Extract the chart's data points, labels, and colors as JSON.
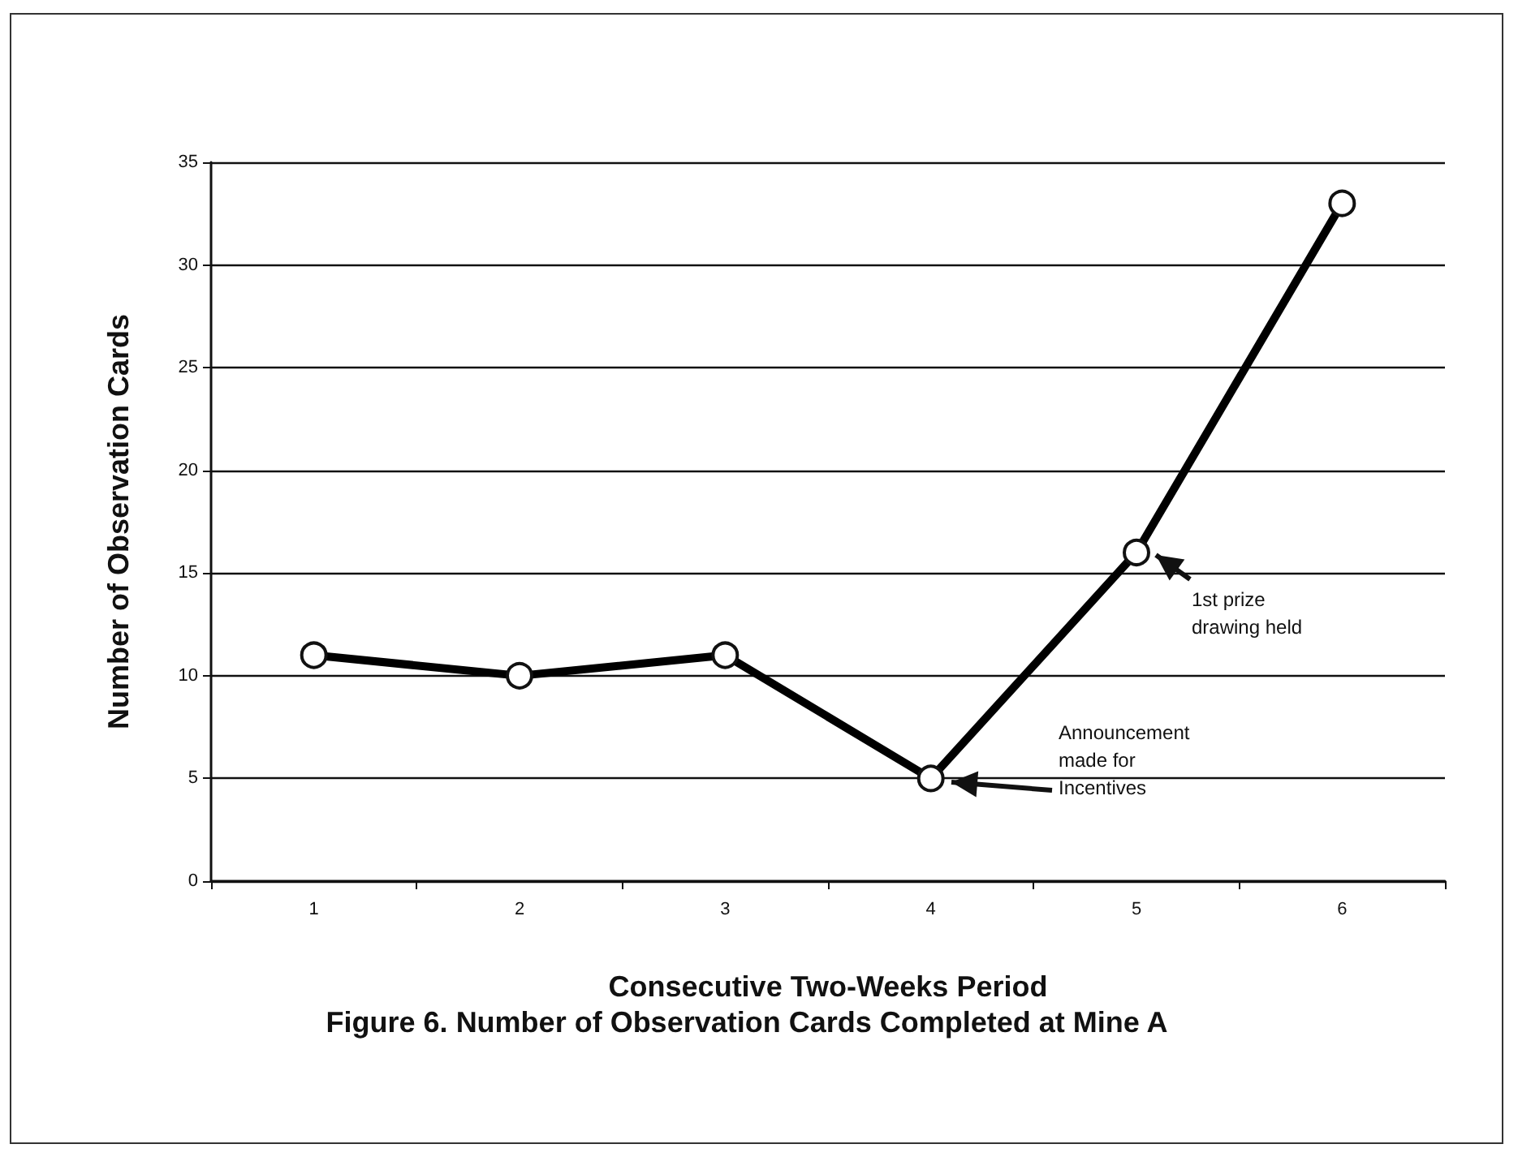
{
  "chart_data": {
    "type": "line",
    "title": "Figure 6. Number of Observation Cards Completed at Mine A",
    "xlabel": "Consecutive Two-Weeks Period",
    "ylabel": "Number of Observation Cards",
    "categories": [
      "1",
      "2",
      "3",
      "4",
      "5",
      "6"
    ],
    "series": [
      {
        "color": "#000000",
        "values": [
          11,
          10,
          11,
          5,
          16,
          33
        ]
      }
    ],
    "ylim": [
      0,
      35
    ],
    "yticks": [
      0,
      5,
      10,
      15,
      20,
      25,
      30,
      35
    ],
    "grid": "y",
    "marker": "circle",
    "line_style": "solid",
    "annotations": [
      "Announcement\nmade for\nIncentives",
      "1st prize\ndrawing held"
    ]
  }
}
